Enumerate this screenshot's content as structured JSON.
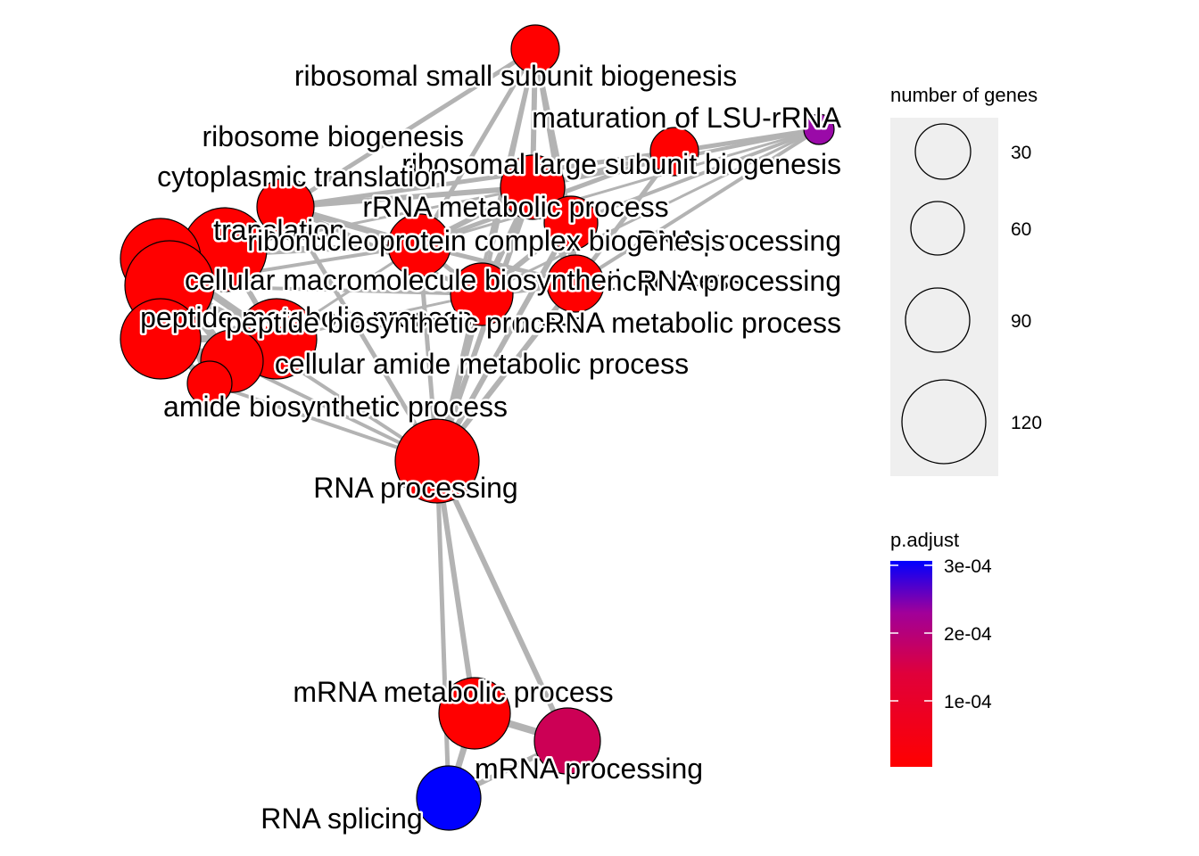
{
  "network": {
    "nodes": [
      {
        "id": "ribosomal-small-subunit-biogenesis",
        "label": "ribosomal small subunit biogenesis",
        "color": "#ff0000"
      },
      {
        "id": "maturation-of-lsu-rrna",
        "label": "maturation of LSU-rRNA",
        "color": "#9a0aa8"
      },
      {
        "id": "ribosome-biogenesis",
        "label": "ribosome biogenesis",
        "color": "#ff0000"
      },
      {
        "id": "ribosomal-large-subunit-biogenesis",
        "label": "ribosomal large subunit biogenesis",
        "color": "#ff0000"
      },
      {
        "id": "cytoplasmic-translation",
        "label": "cytoplasmic translation",
        "color": "#ff0000"
      },
      {
        "id": "rrna-metabolic-process",
        "label": "rRNA metabolic process",
        "color": "#ff0000"
      },
      {
        "id": "translation",
        "label": "translation",
        "color": "#ff0000"
      },
      {
        "id": "rrna-processing",
        "label": "rRNA processing",
        "color": "#ff0000"
      },
      {
        "id": "ribonucleoprotein-complex-biogenesis",
        "label": "ribonucleoprotein complex biogenesis",
        "color": "#ff0000"
      },
      {
        "id": "cellular-macromolecule-biosynthetic-process",
        "label": "cellular macromolecule biosynthetic process",
        "color": "#ff0000"
      },
      {
        "id": "ncrna-processing",
        "label": "ncRNA processing",
        "color": "#ff0000"
      },
      {
        "id": "peptide-metabolic-process",
        "label": "peptide metabolic process",
        "color": "#ff0000"
      },
      {
        "id": "peptide-biosynthetic-process",
        "label": "peptide biosynthetic process",
        "color": "#ff0000"
      },
      {
        "id": "ncrna-metabolic-process",
        "label": "ncRNA metabolic process",
        "color": "#ff0000"
      },
      {
        "id": "cellular-amide-metabolic-process",
        "label": "cellular amide metabolic process",
        "color": "#ff0000"
      },
      {
        "id": "amide-biosynthetic-process",
        "label": "amide biosynthetic process",
        "color": "#ff0000"
      },
      {
        "id": "rna-processing",
        "label": "RNA processing",
        "color": "#ff0000"
      },
      {
        "id": "mrna-metabolic-process",
        "label": "mRNA metabolic process",
        "color": "#ff0000"
      },
      {
        "id": "mrna-processing",
        "label": "mRNA processing",
        "color": "#cc0055"
      },
      {
        "id": "rna-splicing",
        "label": "RNA splicing",
        "color": "#0000ff"
      }
    ]
  },
  "legend": {
    "size": {
      "title": "number of genes",
      "breaks": [
        "30",
        "60",
        "90",
        "120"
      ]
    },
    "color": {
      "title": "p.adjust",
      "breaks": [
        "3e-04",
        "2e-04",
        "1e-04"
      ],
      "low_color": "#ff0000",
      "high_color": "#0000ff"
    }
  }
}
